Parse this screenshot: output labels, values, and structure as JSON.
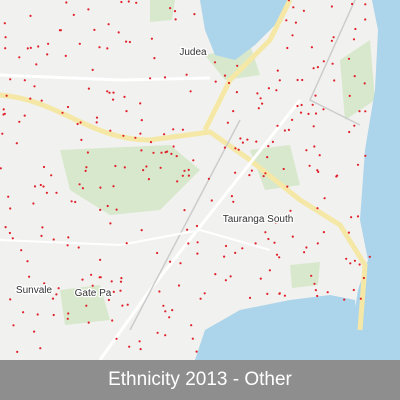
{
  "map": {
    "labels": [
      "Judea",
      "Tauranga South",
      "Sunvale",
      "Gate Pa"
    ]
  },
  "caption": "Ethnicity 2013 - Other"
}
